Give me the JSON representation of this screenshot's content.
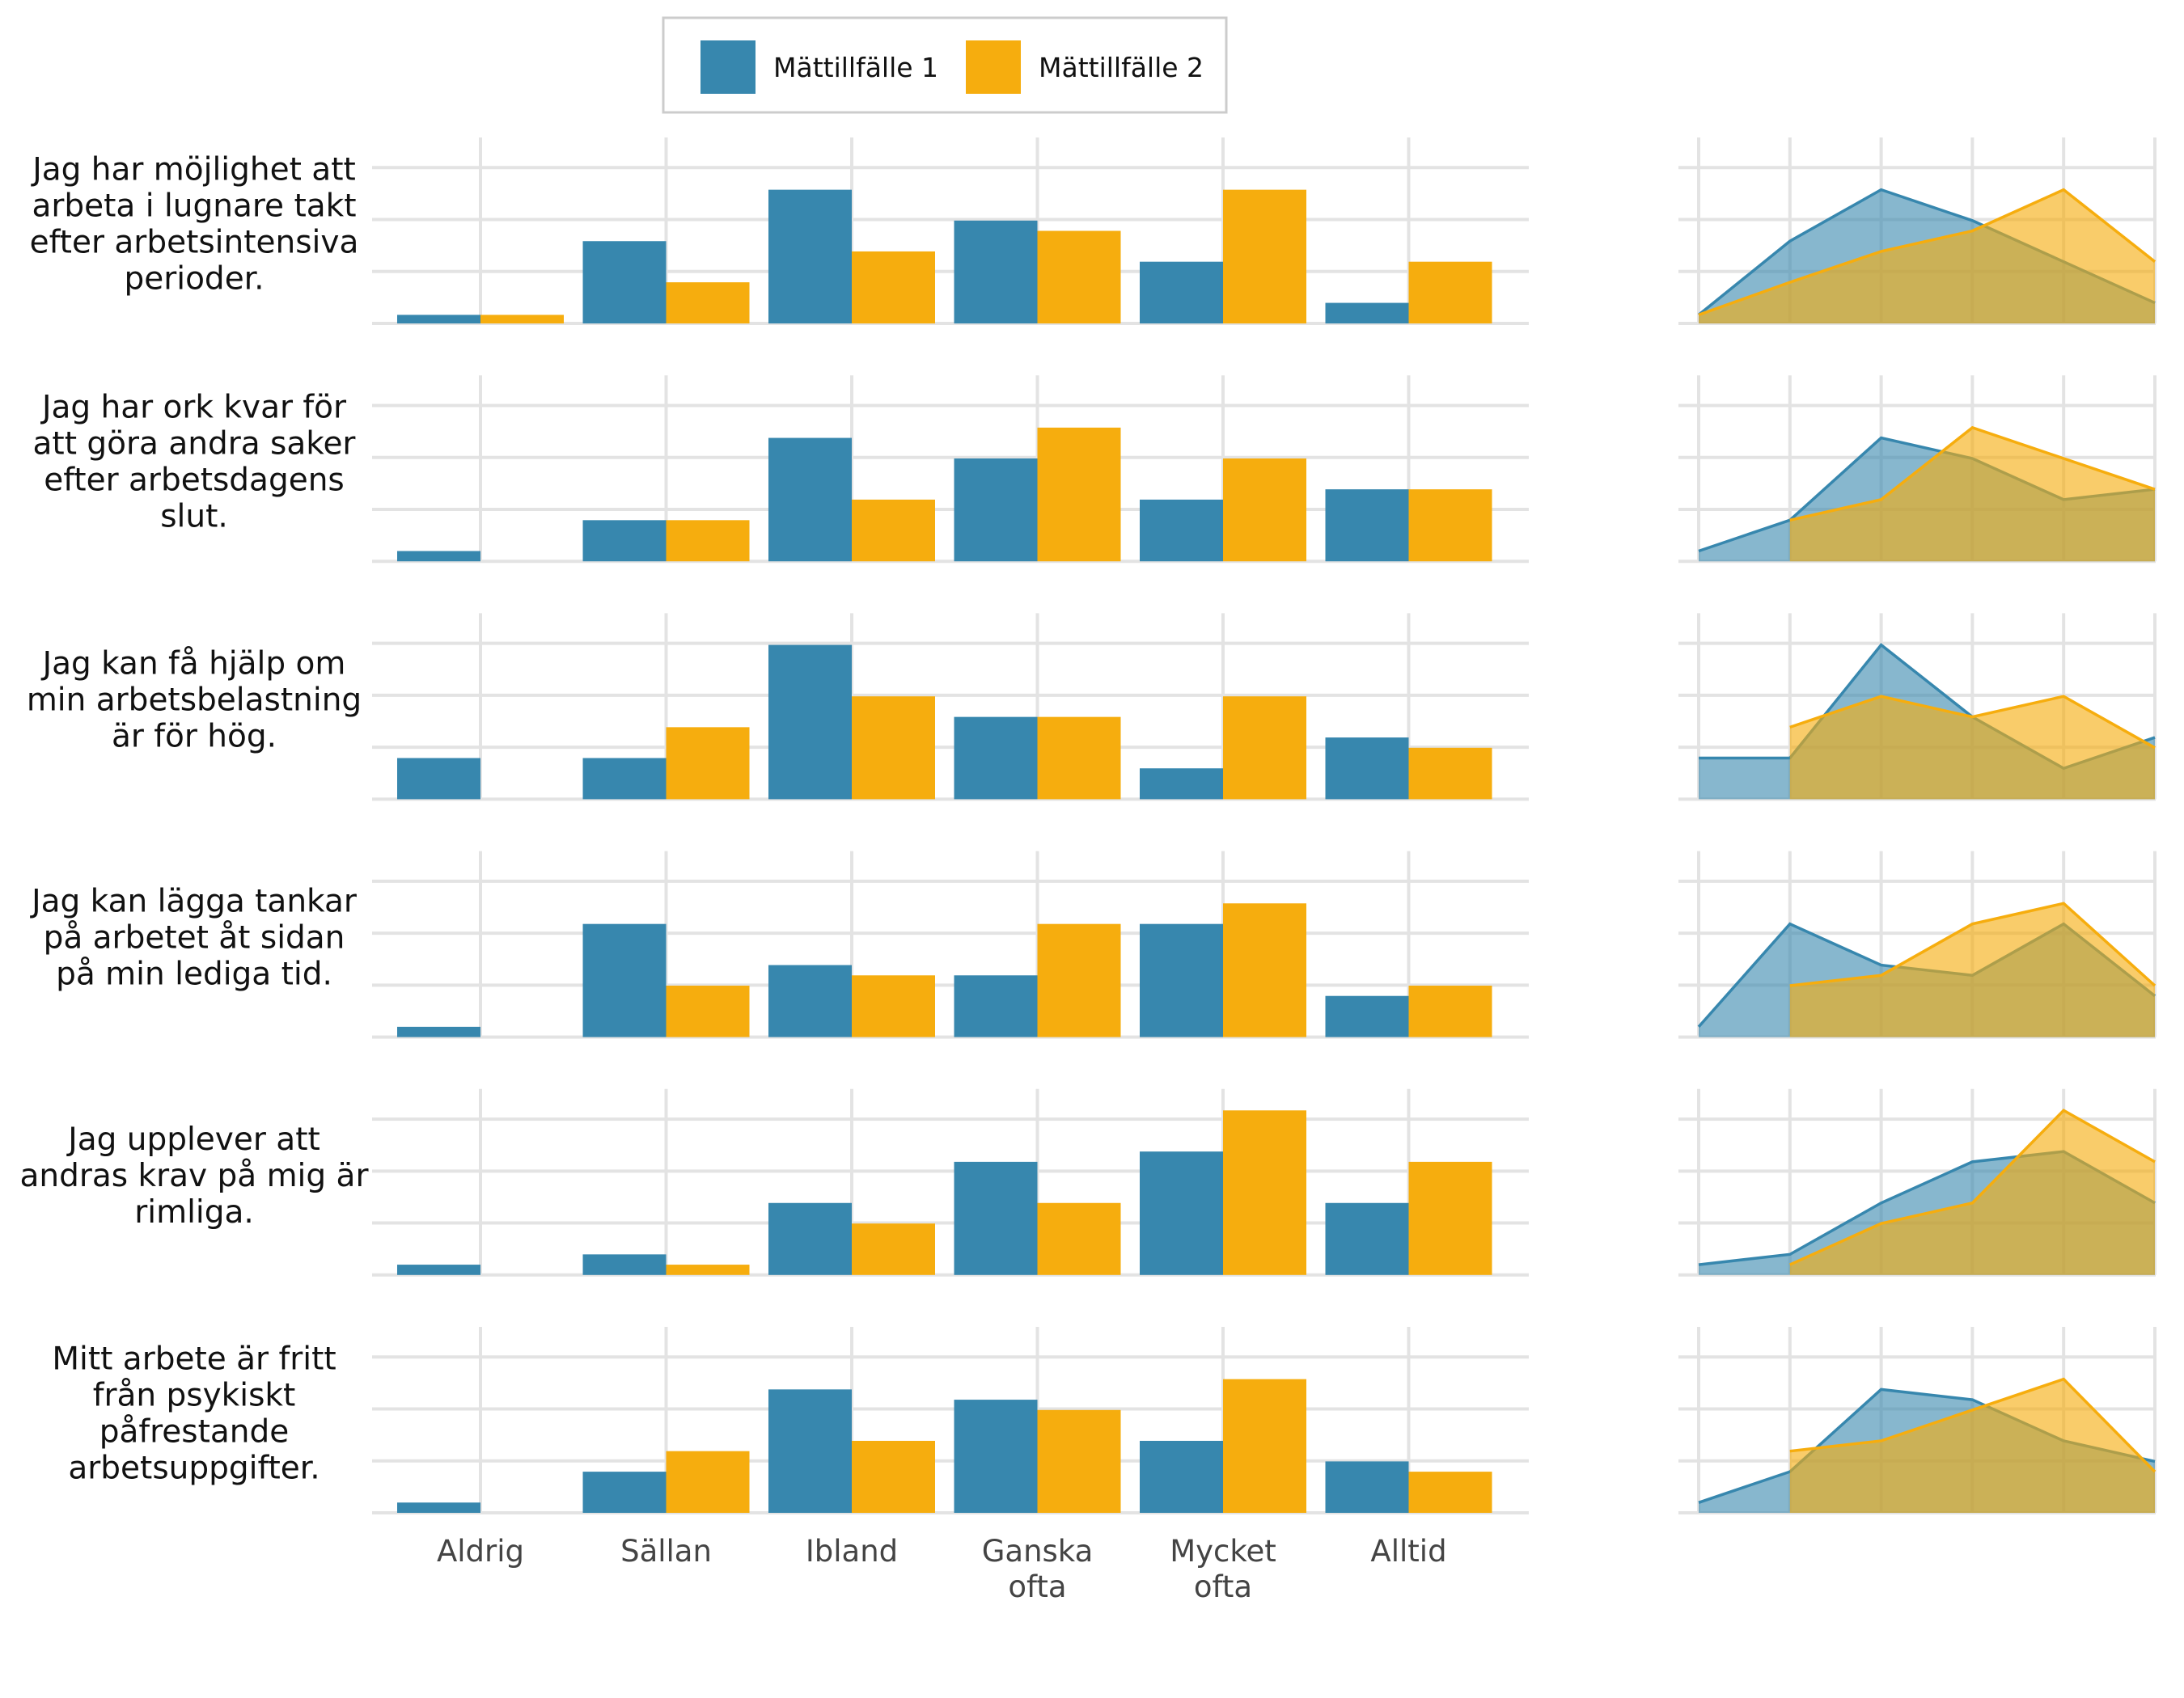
{
  "chart_data": {
    "type": "bar",
    "legend": {
      "placement": "top-center",
      "entries": [
        {
          "label": "Mättillfälle 1",
          "color": "#3787ae"
        },
        {
          "label": "Mättillfälle 2",
          "color": "#f6ad0e"
        }
      ]
    },
    "categories": [
      "Aldrig",
      "Sällan",
      "Ibland",
      "Ganska ofta",
      "Mycket ofta",
      "Alltid"
    ],
    "grid": true,
    "ylim": [
      0,
      1
    ],
    "rows": [
      {
        "question": "Jag har möjlighet att arbeta i lugnare takt efter arbetsintensiva perioder.",
        "series": [
          {
            "name": "Mättillfälle 1",
            "values": [
              0.05,
              0.48,
              0.78,
              0.6,
              0.36,
              0.12
            ]
          },
          {
            "name": "Mättillfälle 2",
            "values": [
              0.05,
              0.24,
              0.42,
              0.54,
              0.78,
              0.36
            ]
          }
        ]
      },
      {
        "question": "Jag har ork kvar för att göra andra saker efter arbetsdagens slut.",
        "series": [
          {
            "name": "Mättillfälle 1",
            "values": [
              0.06,
              0.24,
              0.72,
              0.6,
              0.36,
              0.42
            ]
          },
          {
            "name": "Mättillfälle 2",
            "values": [
              0.0,
              0.24,
              0.36,
              0.78,
              0.6,
              0.42
            ]
          }
        ]
      },
      {
        "question": "Jag kan få hjälp om min arbetsbelastning är för hög.",
        "series": [
          {
            "name": "Mättillfälle 1",
            "values": [
              0.24,
              0.24,
              0.9,
              0.48,
              0.18,
              0.36
            ]
          },
          {
            "name": "Mättillfälle 2",
            "values": [
              0.0,
              0.42,
              0.6,
              0.48,
              0.6,
              0.3
            ]
          }
        ]
      },
      {
        "question": "Jag kan lägga tankar på arbetet åt sidan på min lediga tid.",
        "series": [
          {
            "name": "Mättillfälle 1",
            "values": [
              0.06,
              0.66,
              0.42,
              0.36,
              0.66,
              0.24
            ]
          },
          {
            "name": "Mättillfälle 2",
            "values": [
              0.0,
              0.3,
              0.36,
              0.66,
              0.78,
              0.3
            ]
          }
        ]
      },
      {
        "question": "Jag upplever att andras krav på mig är rimliga.",
        "series": [
          {
            "name": "Mättillfälle 1",
            "values": [
              0.06,
              0.12,
              0.42,
              0.66,
              0.72,
              0.42
            ]
          },
          {
            "name": "Mättillfälle 2",
            "values": [
              0.0,
              0.06,
              0.3,
              0.42,
              0.96,
              0.66
            ]
          }
        ]
      },
      {
        "question": "Mitt arbete är fritt från psykiskt påfrestande arbetsuppgifter.",
        "series": [
          {
            "name": "Mättillfälle 1",
            "values": [
              0.06,
              0.24,
              0.72,
              0.66,
              0.42,
              0.3
            ]
          },
          {
            "name": "Mättillfälle 2",
            "values": [
              0.0,
              0.36,
              0.42,
              0.6,
              0.78,
              0.24
            ]
          }
        ]
      }
    ]
  }
}
